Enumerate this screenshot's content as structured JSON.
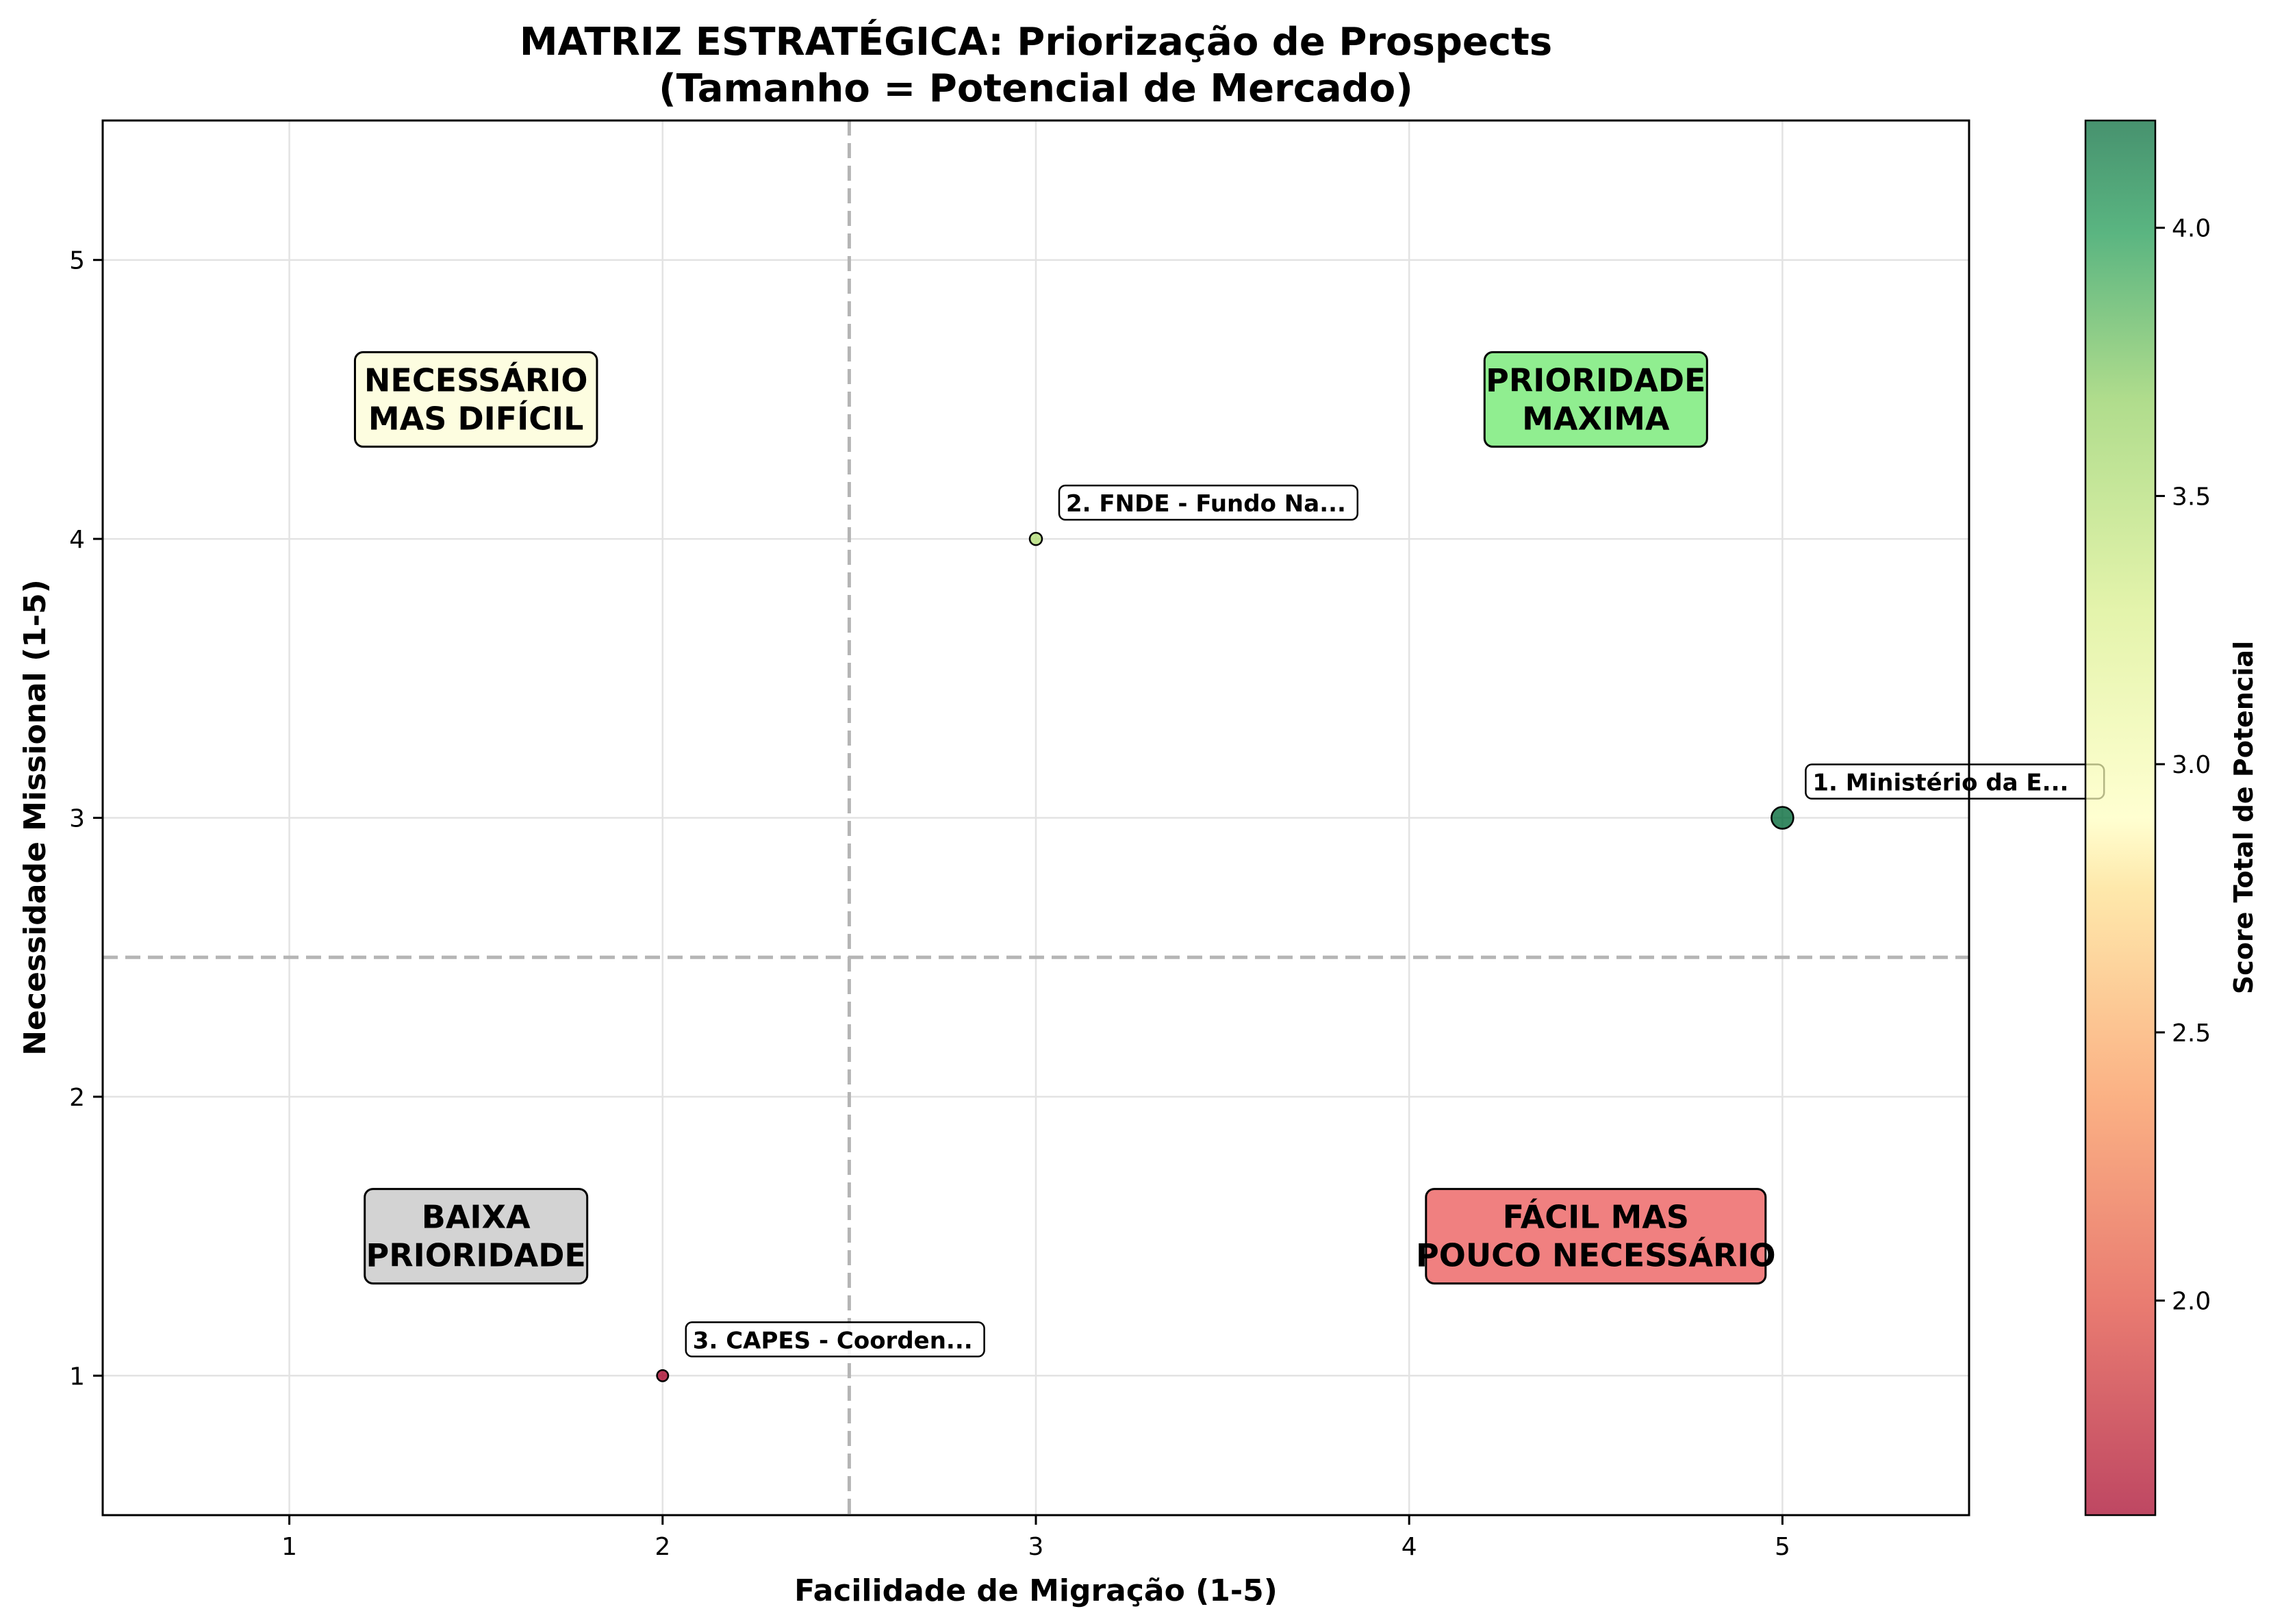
{
  "chart_data": {
    "type": "scatter",
    "title": "MATRIZ ESTRATÉGICA: Priorização de Prospects",
    "subtitle": "(Tamanho = Potencial de Mercado)",
    "xlabel": "Facilidade de Migração (1-5)",
    "ylabel": "Necessidade Missional (1-5)",
    "xlim": [
      0.5,
      5.5
    ],
    "ylim": [
      0.5,
      5.5
    ],
    "xticks": [
      1,
      2,
      3,
      4,
      5
    ],
    "yticks": [
      1,
      2,
      3,
      4,
      5
    ],
    "grid": true,
    "threshold_x": 2.5,
    "threshold_y": 2.5,
    "points": [
      {
        "label": "1. Ministério da E...",
        "x": 5,
        "y": 3,
        "score": 4.2,
        "size_relative": 1.0
      },
      {
        "label": "2. FNDE - Fundo Na...",
        "x": 3,
        "y": 4,
        "score": 3.5,
        "size_relative": 0.3
      },
      {
        "label": "3. CAPES - Coorden...",
        "x": 2,
        "y": 1,
        "score": 1.6,
        "size_relative": 0.22
      }
    ],
    "quadrants": [
      {
        "lines": [
          "NECESSÁRIO",
          "MAS DIFÍCIL"
        ],
        "x": 1.5,
        "y": 4.5,
        "color": "#fdfde0"
      },
      {
        "lines": [
          "PRIORIDADE",
          "MAXIMA"
        ],
        "x": 4.5,
        "y": 4.5,
        "color": "#90ee90"
      },
      {
        "lines": [
          "BAIXA",
          "PRIORIDADE"
        ],
        "x": 1.5,
        "y": 1.5,
        "color": "#d3d3d3"
      },
      {
        "lines": [
          "FÁCIL MAS",
          "POUCO NECESSÁRIO"
        ],
        "x": 4.5,
        "y": 1.5,
        "color": "#f08080"
      }
    ],
    "colorbar": {
      "label": "Score Total de Potencial",
      "min": 1.6,
      "max": 4.2,
      "ticks": [
        2.0,
        2.5,
        3.0,
        3.5,
        4.0
      ],
      "colormap": "RdYlGn"
    }
  }
}
